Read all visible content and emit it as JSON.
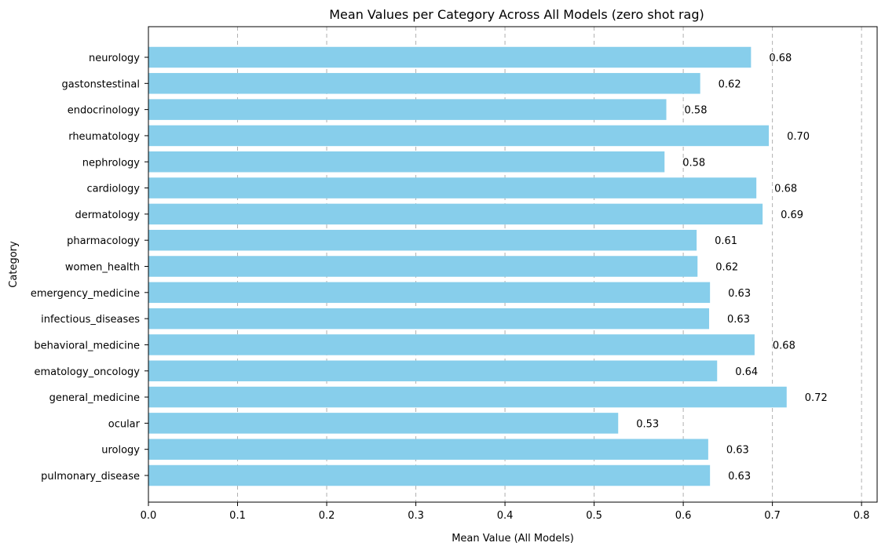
{
  "chart_data": {
    "type": "bar",
    "orientation": "horizontal",
    "title": "Mean Values per Category Across All Models (zero shot rag)",
    "xlabel": "Mean Value (All Models)",
    "ylabel": "Category",
    "xlim": [
      0,
      0.8175
    ],
    "xticks": [
      "0.0",
      "0.1",
      "0.2",
      "0.3",
      "0.4",
      "0.5",
      "0.6",
      "0.7",
      "0.8"
    ],
    "grid": "x-dashed",
    "bar_color": "#87CEEB",
    "categories": [
      "neurology",
      "gastonstestinal",
      "endocrinology",
      "rheumatology",
      "nephrology",
      "cardiology",
      "dermatology",
      "pharmacology",
      "women_health",
      "emergency_medicine",
      "infectious_diseases",
      "behavioral_medicine",
      "ematology_oncology",
      "general_medicine",
      "ocular",
      "urology",
      "pulmonary_disease"
    ],
    "values": [
      0.676,
      0.619,
      0.581,
      0.696,
      0.579,
      0.682,
      0.689,
      0.615,
      0.616,
      0.63,
      0.629,
      0.68,
      0.638,
      0.716,
      0.527,
      0.628,
      0.63
    ],
    "labels": [
      "0.68",
      "0.62",
      "0.58",
      "0.70",
      "0.58",
      "0.68",
      "0.69",
      "0.61",
      "0.62",
      "0.63",
      "0.63",
      "0.68",
      "0.64",
      "0.72",
      "0.53",
      "0.63",
      "0.63"
    ]
  }
}
